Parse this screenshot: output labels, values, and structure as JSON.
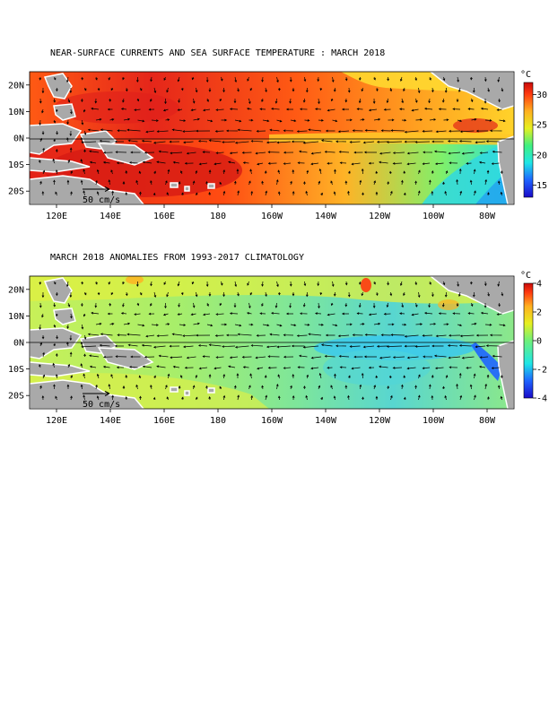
{
  "panels": [
    {
      "id": "sst",
      "title": "NEAR-SURFACE CURRENTS AND SEA SURFACE TEMPERATURE : MARCH 2018",
      "x_ticks": [
        "120E",
        "140E",
        "160E",
        "180",
        "160W",
        "140W",
        "120W",
        "100W",
        "80W"
      ],
      "y_ticks": [
        "20N",
        "10N",
        "0N",
        "10S",
        "20S"
      ],
      "colorbar_unit": "°C",
      "colorbar_ticks": [
        "30",
        "25",
        "20",
        "15"
      ],
      "scale_label": "50 cm/s"
    },
    {
      "id": "anom",
      "title": "MARCH 2018 ANOMALIES FROM 1993-2017 CLIMATOLOGY",
      "x_ticks": [
        "120E",
        "140E",
        "160E",
        "180",
        "160W",
        "140W",
        "120W",
        "100W",
        "80W"
      ],
      "y_ticks": [
        "20N",
        "10N",
        "0N",
        "10S",
        "20S"
      ],
      "colorbar_unit": "°C",
      "colorbar_ticks": [
        "4",
        "2",
        "0",
        "-2",
        "-4"
      ],
      "scale_label": "50 cm/s"
    }
  ],
  "colors": {
    "land": "#a9a9a9",
    "coast": "#ffffff"
  }
}
